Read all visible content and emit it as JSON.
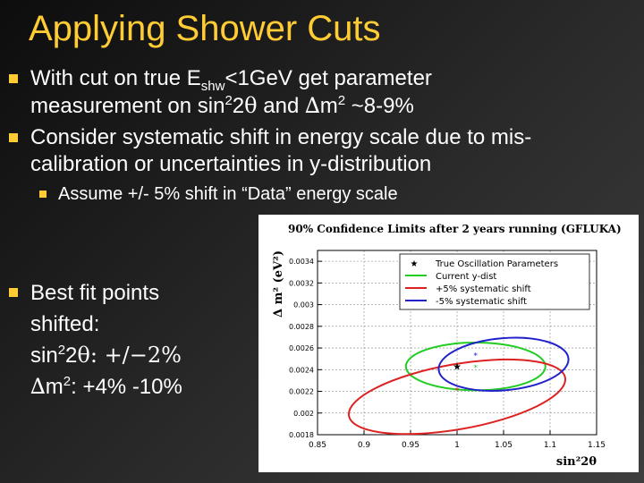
{
  "slide": {
    "title": "Applying Shower Cuts",
    "bullet1": {
      "pre": "With cut on true E",
      "sub": "shw",
      "mid": "<1GeV get parameter",
      "line2_pre": "measurement on sin",
      "sup1": "2",
      "two": "2",
      "theta": "θ",
      "and": " and ",
      "delta": "∆",
      "m": "m",
      "sup2": "2",
      "post": " ~8-9%"
    },
    "bullet2": {
      "line1": "Consider systematic shift in energy scale due to mis-",
      "line2": "calibration or uncertainties in y-distribution"
    },
    "subbullet": "Assume +/- 5% shift in “Data” energy scale",
    "bullet3": {
      "line1": "Best fit points",
      "line2": "shifted:",
      "line3_pre": " sin",
      "line3_sup": "2",
      "line3_mid": "2",
      "line3_theta": "θ: ",
      "line3_val": "+/−2%",
      "line4_delta": "∆",
      "line4_m": "m",
      "line4_sup": "2",
      "line4_val": ": +4% -10%"
    }
  },
  "colors": {
    "title": "#ffcc33",
    "bullet": "#ffcc33",
    "green": "#22cc22",
    "red": "#dd2222",
    "blue": "#2222cc"
  },
  "chart_data": {
    "type": "scatter",
    "title": "90% Confidence Limits after 2 years running (GFLUKA)",
    "xlabel": "sin²2θ",
    "ylabel": "Δ m² (eV²)",
    "xlim": [
      0.85,
      1.15
    ],
    "ylim": [
      0.0018,
      0.0035
    ],
    "x_ticks": [
      "0.85",
      "0.9",
      "0.95",
      "1",
      "1.05",
      "1.1",
      "1.15"
    ],
    "y_ticks": [
      "0.0018",
      "0.002",
      "0.0022",
      "0.0024",
      "0.0026",
      "0.0028",
      "0.003",
      "0.0032",
      "0.0034"
    ],
    "x_tick_values": [
      0.85,
      0.9,
      0.95,
      1.0,
      1.05,
      1.1,
      1.15
    ],
    "y_tick_values": [
      0.0018,
      0.002,
      0.0022,
      0.0024,
      0.0026,
      0.0028,
      0.003,
      0.0032,
      0.0034
    ],
    "grid": true,
    "legend_position": "top-right",
    "legend": [
      {
        "name": "True Oscillation Parameters",
        "kind": "marker",
        "color": "#000000"
      },
      {
        "name": "Current y-dist",
        "kind": "line",
        "color": "#22cc22"
      },
      {
        "name": "+5% systematic shift",
        "kind": "line",
        "color": "#dd2222"
      },
      {
        "name": "-5% systematic shift",
        "kind": "line",
        "color": "#2222cc"
      }
    ],
    "true_point": {
      "x": 1.0,
      "y": 0.00243
    },
    "contours": [
      {
        "name": "Current y-dist",
        "color": "#22cc22",
        "center": [
          1.02,
          0.00243
        ],
        "rx": 0.075,
        "ry": 0.00022,
        "angle_deg": 0
      },
      {
        "name": "+5% systematic shift",
        "color": "#dd2222",
        "center": [
          1.0,
          0.00215
        ],
        "rx": 0.118,
        "ry": 0.0003,
        "angle_deg": -10
      },
      {
        "name": "-5% systematic shift",
        "color": "#2222cc",
        "center": [
          1.05,
          0.00245
        ],
        "rx": 0.07,
        "ry": 0.00024,
        "angle_deg": -5
      }
    ],
    "best_fit_points": [
      {
        "series": "Current y-dist",
        "color": "#22cc22",
        "x": 1.02,
        "y": 0.00242
      },
      {
        "series": "+5% systematic shift",
        "color": "#dd2222",
        "x": 1.0,
        "y": 0.00221
      },
      {
        "series": "-5% systematic shift",
        "color": "#2222cc",
        "x": 1.02,
        "y": 0.00253
      }
    ]
  }
}
